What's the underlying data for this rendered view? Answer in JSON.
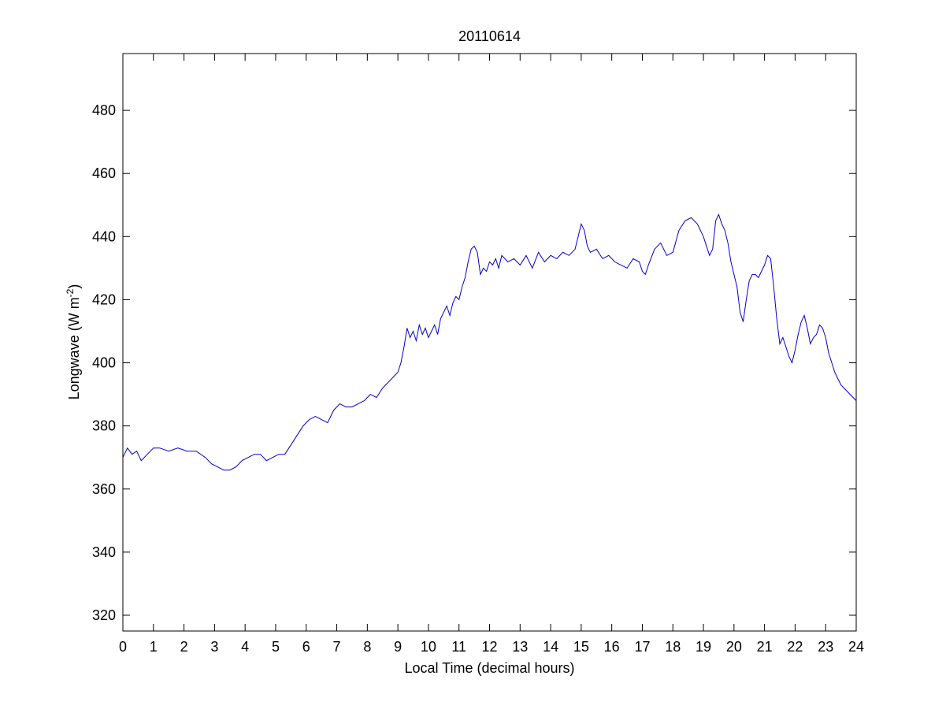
{
  "chart_data": {
    "type": "line",
    "title": "20110614",
    "xlabel": "Local Time (decimal hours)",
    "ylabel": {
      "main": "Longwave (W m",
      "superscript": "-2",
      "close": ")"
    },
    "xlim": [
      0,
      24
    ],
    "ylim": [
      315,
      498
    ],
    "xticks": [
      0,
      1,
      2,
      3,
      4,
      5,
      6,
      7,
      8,
      9,
      10,
      11,
      12,
      13,
      14,
      15,
      16,
      17,
      18,
      19,
      20,
      21,
      22,
      23,
      24
    ],
    "yticks": [
      320,
      340,
      360,
      380,
      400,
      420,
      440,
      460,
      480
    ],
    "grid": false,
    "legend": "none",
    "series": [
      {
        "color": "#0000cc",
        "x": [
          0,
          0.15,
          0.3,
          0.45,
          0.6,
          0.8,
          1.0,
          1.2,
          1.5,
          1.8,
          2.1,
          2.4,
          2.7,
          2.9,
          3.1,
          3.3,
          3.5,
          3.7,
          3.9,
          4.1,
          4.3,
          4.5,
          4.7,
          4.9,
          5.1,
          5.3,
          5.5,
          5.7,
          5.9,
          6.1,
          6.3,
          6.5,
          6.7,
          6.9,
          7.1,
          7.3,
          7.5,
          7.7,
          7.9,
          8.1,
          8.3,
          8.5,
          8.7,
          8.9,
          9.0,
          9.1,
          9.2,
          9.3,
          9.4,
          9.5,
          9.6,
          9.7,
          9.8,
          9.9,
          10.0,
          10.1,
          10.2,
          10.3,
          10.4,
          10.5,
          10.6,
          10.7,
          10.8,
          10.9,
          11.0,
          11.1,
          11.2,
          11.3,
          11.4,
          11.5,
          11.6,
          11.7,
          11.8,
          11.9,
          12.0,
          12.1,
          12.2,
          12.3,
          12.4,
          12.6,
          12.8,
          13.0,
          13.2,
          13.4,
          13.6,
          13.8,
          14.0,
          14.2,
          14.4,
          14.6,
          14.8,
          14.9,
          15.0,
          15.1,
          15.2,
          15.3,
          15.5,
          15.7,
          15.9,
          16.1,
          16.3,
          16.5,
          16.7,
          16.9,
          17.0,
          17.1,
          17.2,
          17.4,
          17.6,
          17.8,
          18.0,
          18.2,
          18.4,
          18.6,
          18.8,
          19.0,
          19.2,
          19.3,
          19.4,
          19.5,
          19.6,
          19.7,
          19.8,
          19.9,
          20.0,
          20.1,
          20.2,
          20.3,
          20.4,
          20.5,
          20.6,
          20.7,
          20.8,
          20.9,
          21.0,
          21.1,
          21.2,
          21.3,
          21.4,
          21.5,
          21.6,
          21.7,
          21.8,
          21.9,
          22.0,
          22.1,
          22.2,
          22.3,
          22.4,
          22.5,
          22.6,
          22.7,
          22.8,
          22.9,
          23.0,
          23.1,
          23.2,
          23.3,
          23.4,
          23.5,
          23.6,
          23.7,
          23.8,
          23.9,
          24.0
        ],
        "y": [
          370,
          373,
          371,
          372,
          369,
          371,
          373,
          373,
          372,
          373,
          372,
          372,
          370,
          368,
          367,
          366,
          366,
          367,
          369,
          370,
          371,
          371,
          369,
          370,
          371,
          371,
          374,
          377,
          380,
          382,
          383,
          382,
          381,
          385,
          387,
          386,
          386,
          387,
          388,
          390,
          389,
          392,
          394,
          396,
          397,
          400,
          405,
          411,
          408,
          410,
          407,
          412,
          409,
          411,
          408,
          410,
          412,
          409,
          414,
          416,
          418,
          415,
          419,
          421,
          420,
          424,
          427,
          432,
          436,
          437,
          435,
          428,
          430,
          429,
          432,
          431,
          433,
          430,
          434,
          432,
          433,
          431,
          434,
          430,
          435,
          432,
          434,
          433,
          435,
          434,
          436,
          440,
          444,
          442,
          437,
          435,
          436,
          433,
          434,
          432,
          431,
          430,
          433,
          432,
          429,
          428,
          431,
          436,
          438,
          434,
          435,
          442,
          445,
          446,
          444,
          440,
          434,
          436,
          445,
          447,
          444,
          442,
          438,
          432,
          428,
          424,
          416,
          413,
          420,
          426,
          428,
          428,
          427,
          429,
          431,
          434,
          433,
          424,
          414,
          406,
          408,
          405,
          402,
          400,
          404,
          409,
          413,
          415,
          411,
          406,
          408,
          409,
          412,
          411,
          408,
          403,
          400,
          397,
          395,
          393,
          392,
          391,
          390,
          389,
          388
        ]
      }
    ]
  }
}
